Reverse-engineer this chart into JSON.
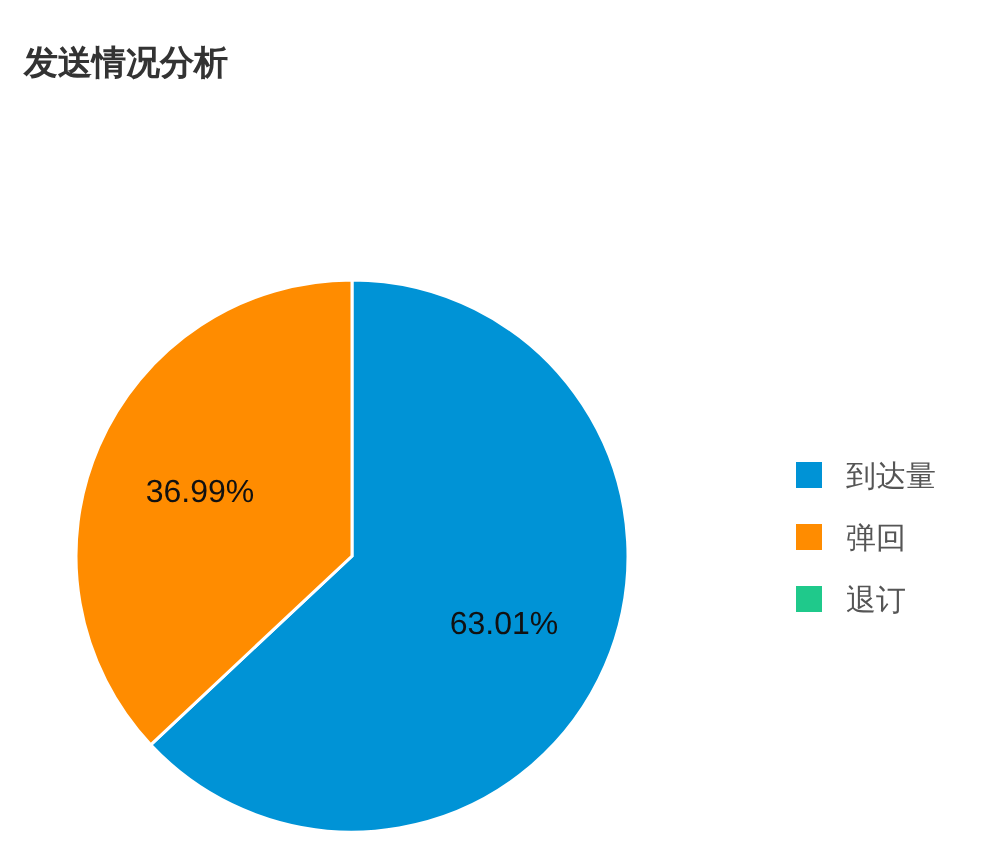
{
  "chart_data": {
    "type": "pie",
    "title": "发送情况分析",
    "categories": [
      "到达量",
      "弹回",
      "退订"
    ],
    "values": [
      63.01,
      36.99,
      0
    ],
    "colors": [
      "#0093d6",
      "#ff8c00",
      "#1fc98b"
    ],
    "value_labels": [
      "63.01%",
      "36.99%",
      null
    ],
    "legend": "right"
  }
}
